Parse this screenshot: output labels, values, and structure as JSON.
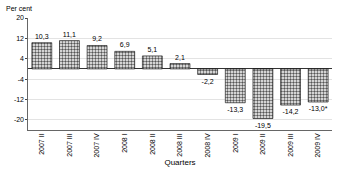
{
  "chart_data": {
    "type": "bar",
    "y_label": "Per cent",
    "x_label": "Quarters",
    "categories": [
      "2007 II",
      "2007 III",
      "2007 IV",
      "2008 I",
      "2008 II",
      "2008 III",
      "2008 IV",
      "2009 I",
      "2009 II",
      "2009 III",
      "2009 IV"
    ],
    "values": [
      10.3,
      11.1,
      9.2,
      6.9,
      5.1,
      2.1,
      -2.2,
      -13.3,
      -19.5,
      -14.2,
      -13.0
    ],
    "value_labels": [
      "10,3",
      "11,1",
      "9,2",
      "6,9",
      "5,1",
      "2,1",
      "-2,2",
      "-13,3",
      "-19,5",
      "-14,2",
      "-13,0*"
    ],
    "data_labels": true,
    "color": "#555555",
    "marker": "dotted",
    "ylim": [
      -24,
      20
    ],
    "yticks": [
      -20,
      -12,
      -4,
      4,
      12,
      20
    ],
    "grid": true
  }
}
